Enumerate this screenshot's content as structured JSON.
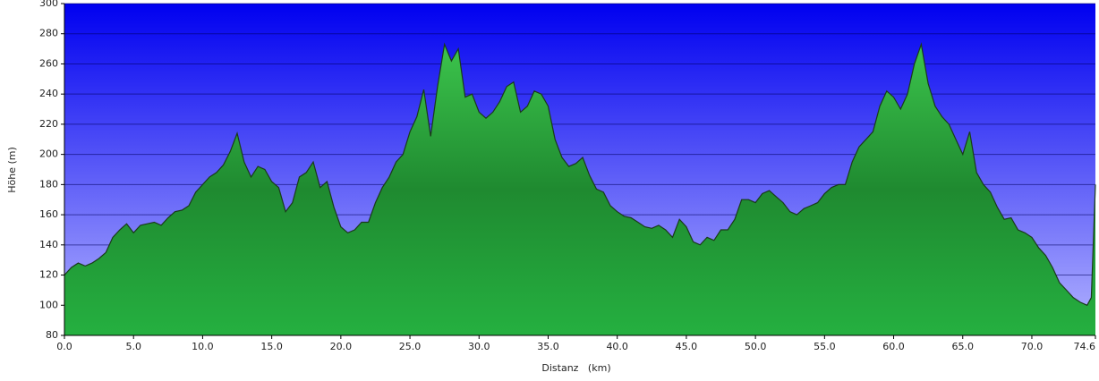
{
  "chart_data": {
    "type": "area",
    "xlabel": "Distanz   (km)",
    "ylabel": "Höhe (m)",
    "x": [
      0,
      0.5,
      1,
      1.5,
      2,
      2.5,
      3,
      3.5,
      4,
      4.5,
      5,
      5.5,
      6,
      6.5,
      7,
      7.5,
      8,
      8.5,
      9,
      9.5,
      10,
      10.5,
      11,
      11.5,
      12,
      12.5,
      13,
      13.5,
      14,
      14.5,
      15,
      15.5,
      16,
      16.5,
      17,
      17.5,
      18,
      18.5,
      19,
      19.5,
      20,
      20.5,
      21,
      21.5,
      22,
      22.5,
      23,
      23.5,
      24,
      24.5,
      25,
      25.5,
      26,
      26.5,
      27,
      27.5,
      28,
      28.5,
      29,
      29.5,
      30,
      30.5,
      31,
      31.5,
      32,
      32.5,
      33,
      33.5,
      34,
      34.5,
      35,
      35.5,
      36,
      36.5,
      37,
      37.5,
      38,
      38.5,
      39,
      39.5,
      40,
      40.5,
      41,
      41.5,
      42,
      42.5,
      43,
      43.5,
      44,
      44.5,
      45,
      45.5,
      46,
      46.5,
      47,
      47.5,
      48,
      48.5,
      49,
      49.5,
      50,
      50.5,
      51,
      51.5,
      52,
      52.5,
      53,
      53.5,
      54,
      54.5,
      55,
      55.5,
      56,
      56.5,
      57,
      57.5,
      58,
      58.5,
      59,
      59.5,
      60,
      60.5,
      61,
      61.5,
      62,
      62.5,
      63,
      63.5,
      64,
      64.5,
      65,
      65.5,
      66,
      66.5,
      67,
      67.5,
      68,
      68.5,
      69,
      69.5,
      70,
      70.5,
      71,
      71.5,
      72,
      72.5,
      73,
      73.5,
      74,
      74.3,
      74.6
    ],
    "y": [
      120,
      125,
      128,
      126,
      128,
      131,
      135,
      145,
      150,
      154,
      148,
      153,
      154,
      155,
      153,
      158,
      162,
      163,
      166,
      175,
      180,
      185,
      188,
      193,
      202,
      214,
      195,
      185,
      192,
      190,
      182,
      178,
      162,
      168,
      185,
      188,
      195,
      178,
      182,
      165,
      152,
      148,
      150,
      155,
      155,
      168,
      178,
      185,
      195,
      200,
      215,
      225,
      243,
      212,
      245,
      273,
      262,
      270,
      238,
      240,
      228,
      224,
      228,
      235,
      245,
      248,
      228,
      232,
      242,
      240,
      232,
      210,
      198,
      192,
      194,
      198,
      186,
      177,
      175,
      166,
      162,
      159,
      158,
      155,
      152,
      151,
      153,
      150,
      145,
      157,
      152,
      142,
      140,
      145,
      143,
      150,
      150,
      157,
      170,
      170,
      168,
      174,
      176,
      172,
      168,
      162,
      160,
      164,
      166,
      168,
      174,
      178,
      180,
      180,
      195,
      205,
      210,
      215,
      232,
      242,
      238,
      230,
      240,
      260,
      273,
      247,
      232,
      225,
      220,
      210,
      200,
      215,
      188,
      180,
      175,
      165,
      157,
      158,
      150,
      148,
      145,
      138,
      133,
      125,
      115,
      110,
      105,
      102,
      100,
      105,
      180
    ],
    "xlim": [
      0,
      74.6
    ],
    "ylim": [
      80,
      300
    ],
    "xticks": [
      {
        "value": 0,
        "label": "0.0"
      },
      {
        "value": 5,
        "label": "5.0"
      },
      {
        "value": 10,
        "label": "10.0"
      },
      {
        "value": 15,
        "label": "15.0"
      },
      {
        "value": 20,
        "label": "20.0"
      },
      {
        "value": 25,
        "label": "25.0"
      },
      {
        "value": 30,
        "label": "30.0"
      },
      {
        "value": 35,
        "label": "35.0"
      },
      {
        "value": 40,
        "label": "40.0"
      },
      {
        "value": 45,
        "label": "45.0"
      },
      {
        "value": 50,
        "label": "50.0"
      },
      {
        "value": 55,
        "label": "55.0"
      },
      {
        "value": 60,
        "label": "60.0"
      },
      {
        "value": 65,
        "label": "65.0"
      },
      {
        "value": 70,
        "label": "70.0"
      },
      74.6
    ],
    "yticks": [
      80,
      100,
      120,
      140,
      160,
      180,
      200,
      220,
      240,
      260,
      280,
      300
    ],
    "grid": true,
    "color": "#22aa3a"
  }
}
